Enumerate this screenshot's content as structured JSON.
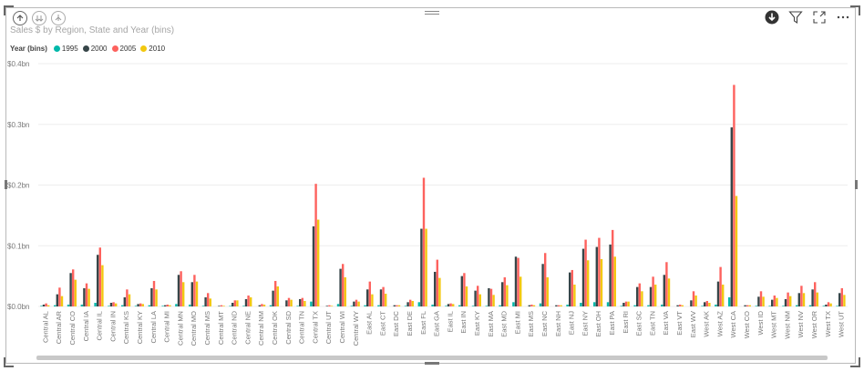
{
  "colors": {
    "1995": "#01B8AA",
    "2000": "#374649",
    "2005": "#FD625E",
    "2010": "#F2C80F",
    "gridline": "#eeeeee",
    "axis_text": "#777777"
  },
  "header": {
    "title": "Sales $ by Region, State and Year (bins)",
    "icons_left": [
      "drill-up-icon",
      "drill-down-icon",
      "expand-hierarchy-icon"
    ],
    "icons_right": [
      "drill-mode-icon",
      "filter-icon",
      "focus-mode-icon",
      "more-options-icon"
    ]
  },
  "legend": {
    "title": "Year (bins)",
    "items": [
      "1995",
      "2000",
      "2005",
      "2010"
    ]
  },
  "chart_data": {
    "type": "bar",
    "title": "Sales $ by Region, State and Year (bins)",
    "xlabel": "",
    "ylabel": "",
    "ylim": [
      0,
      0.4
    ],
    "yticks": [
      {
        "value": 0,
        "label": "$0.0bn"
      },
      {
        "value": 0.1,
        "label": "$0.1bn"
      },
      {
        "value": 0.2,
        "label": "$0.2bn"
      },
      {
        "value": 0.3,
        "label": "$0.3bn"
      },
      {
        "value": 0.4,
        "label": "$0.4bn"
      }
    ],
    "grid": true,
    "legend_position": "top-left",
    "categories": [
      "Central AL",
      "Central AR",
      "Central CO",
      "Central IA",
      "Central IL",
      "Central IN",
      "Central KS",
      "Central KY",
      "Central LA",
      "Central MI",
      "Central MN",
      "Central MO",
      "Central MS",
      "Central MT",
      "Central ND",
      "Central NE",
      "Central NM",
      "Central OK",
      "Central SD",
      "Central TN",
      "Central TX",
      "Central UT",
      "Central WI",
      "Central WY",
      "East AL",
      "East CT",
      "East DC",
      "East DE",
      "East FL",
      "East GA",
      "East IL",
      "East IN",
      "East KY",
      "East MA",
      "East MD",
      "East MI",
      "East MS",
      "East NC",
      "East NH",
      "East NJ",
      "East NY",
      "East OH",
      "East PA",
      "East RI",
      "East SC",
      "East TN",
      "East VA",
      "East VT",
      "East WV",
      "West AK",
      "West AZ",
      "West CA",
      "West CO",
      "West ID",
      "West MT",
      "West NM",
      "West NV",
      "West OR",
      "West TX",
      "West UT"
    ],
    "series": [
      {
        "name": "1995",
        "values": [
          0.001,
          0.002,
          0.003,
          0.003,
          0.006,
          0.001,
          0.002,
          0.001,
          0.002,
          0.001,
          0.004,
          0.003,
          0.001,
          0.0,
          0.001,
          0.001,
          0.0,
          0.002,
          0.0,
          0.001,
          0.008,
          0.0,
          0.004,
          0.001,
          0.002,
          0.002,
          0.0,
          0.001,
          0.007,
          0.003,
          0.001,
          0.002,
          0.001,
          0.001,
          0.002,
          0.007,
          0.0,
          0.005,
          0.0,
          0.003,
          0.006,
          0.007,
          0.007,
          0.001,
          0.002,
          0.002,
          0.003,
          0.0,
          0.0,
          0.001,
          0.003,
          0.015,
          0.0,
          0.001,
          0.001,
          0.001,
          0.002,
          0.002,
          0.001,
          0.001
        ]
      },
      {
        "name": "2000",
        "values": [
          0.003,
          0.02,
          0.055,
          0.03,
          0.085,
          0.006,
          0.015,
          0.004,
          0.03,
          0.002,
          0.052,
          0.04,
          0.015,
          0.001,
          0.006,
          0.012,
          0.002,
          0.026,
          0.01,
          0.012,
          0.132,
          0.001,
          0.062,
          0.008,
          0.028,
          0.028,
          0.002,
          0.007,
          0.128,
          0.057,
          0.004,
          0.05,
          0.026,
          0.03,
          0.04,
          0.082,
          0.002,
          0.07,
          0.002,
          0.056,
          0.095,
          0.098,
          0.102,
          0.006,
          0.032,
          0.032,
          0.052,
          0.002,
          0.01,
          0.007,
          0.041,
          0.295,
          0.002,
          0.016,
          0.011,
          0.012,
          0.022,
          0.028,
          0.003,
          0.022
        ]
      },
      {
        "name": "2005",
        "values": [
          0.005,
          0.031,
          0.061,
          0.038,
          0.097,
          0.007,
          0.028,
          0.005,
          0.042,
          0.003,
          0.058,
          0.052,
          0.022,
          0.002,
          0.01,
          0.018,
          0.004,
          0.042,
          0.014,
          0.014,
          0.202,
          0.002,
          0.07,
          0.011,
          0.041,
          0.032,
          0.002,
          0.011,
          0.212,
          0.077,
          0.005,
          0.055,
          0.034,
          0.029,
          0.048,
          0.08,
          0.003,
          0.088,
          0.002,
          0.06,
          0.11,
          0.113,
          0.126,
          0.008,
          0.038,
          0.049,
          0.073,
          0.003,
          0.025,
          0.009,
          0.065,
          0.365,
          0.002,
          0.025,
          0.018,
          0.023,
          0.034,
          0.04,
          0.007,
          0.03
        ]
      },
      {
        "name": "2010",
        "values": [
          0.002,
          0.017,
          0.044,
          0.029,
          0.068,
          0.005,
          0.02,
          0.004,
          0.028,
          0.002,
          0.04,
          0.041,
          0.013,
          0.001,
          0.01,
          0.015,
          0.003,
          0.033,
          0.011,
          0.009,
          0.143,
          0.001,
          0.048,
          0.008,
          0.02,
          0.021,
          0.002,
          0.009,
          0.128,
          0.047,
          0.004,
          0.033,
          0.02,
          0.019,
          0.035,
          0.049,
          0.002,
          0.048,
          0.002,
          0.036,
          0.076,
          0.078,
          0.082,
          0.008,
          0.025,
          0.036,
          0.046,
          0.002,
          0.018,
          0.006,
          0.036,
          0.182,
          0.002,
          0.016,
          0.014,
          0.017,
          0.022,
          0.023,
          0.005,
          0.019
        ]
      }
    ]
  }
}
